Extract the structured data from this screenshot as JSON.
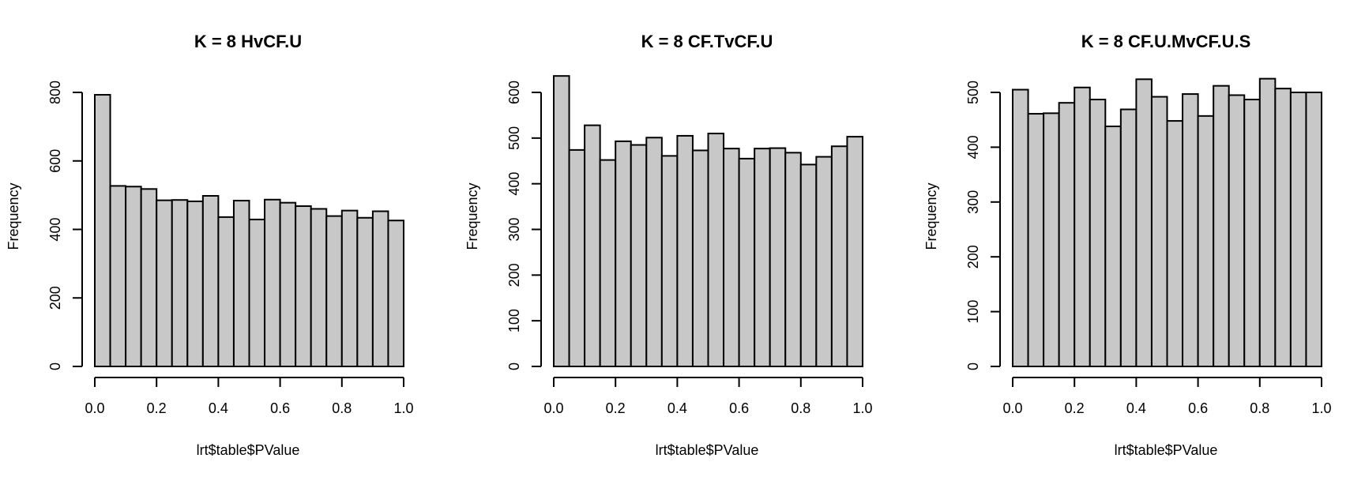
{
  "chart_data": [
    {
      "type": "bar",
      "title": "K = 8 HvCF.U",
      "xlabel": "lrt$table$PValue",
      "ylabel": "Frequency",
      "bin_edges": [
        0.0,
        0.05,
        0.1,
        0.15,
        0.2,
        0.25,
        0.3,
        0.35,
        0.4,
        0.45,
        0.5,
        0.55,
        0.6,
        0.65,
        0.7,
        0.75,
        0.8,
        0.85,
        0.9,
        0.95,
        1.0
      ],
      "values": [
        793,
        527,
        525,
        518,
        485,
        486,
        482,
        498,
        436,
        484,
        429,
        487,
        478,
        468,
        460,
        439,
        455,
        434,
        453,
        426
      ],
      "xticks": [
        0.0,
        0.2,
        0.4,
        0.6,
        0.8,
        1.0
      ],
      "xtick_labels": [
        "0.0",
        "0.2",
        "0.4",
        "0.6",
        "0.8",
        "1.0"
      ],
      "yticks": [
        0,
        200,
        400,
        600,
        800
      ],
      "ytick_labels": [
        "0",
        "200",
        "400",
        "600",
        "800"
      ],
      "xlim": [
        0,
        1
      ],
      "ylim": [
        0,
        800
      ],
      "grid": false,
      "colors": {
        "bar_fill": "#c8c8c8",
        "bar_stroke": "#000000"
      }
    },
    {
      "type": "bar",
      "title": "K = 8 CF.TvCF.U",
      "xlabel": "lrt$table$PValue",
      "ylabel": "Frequency",
      "bin_edges": [
        0.0,
        0.05,
        0.1,
        0.15,
        0.2,
        0.25,
        0.3,
        0.35,
        0.4,
        0.45,
        0.5,
        0.55,
        0.6,
        0.65,
        0.7,
        0.75,
        0.8,
        0.85,
        0.9,
        0.95,
        1.0
      ],
      "values": [
        636,
        474,
        528,
        452,
        493,
        485,
        501,
        461,
        505,
        473,
        510,
        477,
        455,
        477,
        478,
        468,
        442,
        459,
        482,
        503
      ],
      "xticks": [
        0.0,
        0.2,
        0.4,
        0.6,
        0.8,
        1.0
      ],
      "xtick_labels": [
        "0.0",
        "0.2",
        "0.4",
        "0.6",
        "0.8",
        "1.0"
      ],
      "yticks": [
        0,
        100,
        200,
        300,
        400,
        500,
        600
      ],
      "ytick_labels": [
        "0",
        "100",
        "200",
        "300",
        "400",
        "500",
        "600"
      ],
      "xlim": [
        0,
        1
      ],
      "ylim": [
        0,
        600
      ],
      "grid": false,
      "colors": {
        "bar_fill": "#c8c8c8",
        "bar_stroke": "#000000"
      }
    },
    {
      "type": "bar",
      "title": "K = 8 CF.U.MvCF.U.S",
      "xlabel": "lrt$table$PValue",
      "ylabel": "Frequency",
      "bin_edges": [
        0.0,
        0.05,
        0.1,
        0.15,
        0.2,
        0.25,
        0.3,
        0.35,
        0.4,
        0.45,
        0.5,
        0.55,
        0.6,
        0.65,
        0.7,
        0.75,
        0.8,
        0.85,
        0.9,
        0.95,
        1.0
      ],
      "values": [
        505,
        461,
        462,
        481,
        509,
        487,
        438,
        469,
        524,
        492,
        448,
        497,
        457,
        512,
        495,
        487,
        525,
        507,
        500,
        500
      ],
      "xticks": [
        0.0,
        0.2,
        0.4,
        0.6,
        0.8,
        1.0
      ],
      "xtick_labels": [
        "0.0",
        "0.2",
        "0.4",
        "0.6",
        "0.8",
        "1.0"
      ],
      "yticks": [
        0,
        100,
        200,
        300,
        400,
        500
      ],
      "ytick_labels": [
        "0",
        "100",
        "200",
        "300",
        "400",
        "500"
      ],
      "xlim": [
        0,
        1
      ],
      "ylim": [
        0,
        500
      ],
      "grid": false,
      "colors": {
        "bar_fill": "#c8c8c8",
        "bar_stroke": "#000000"
      }
    }
  ]
}
